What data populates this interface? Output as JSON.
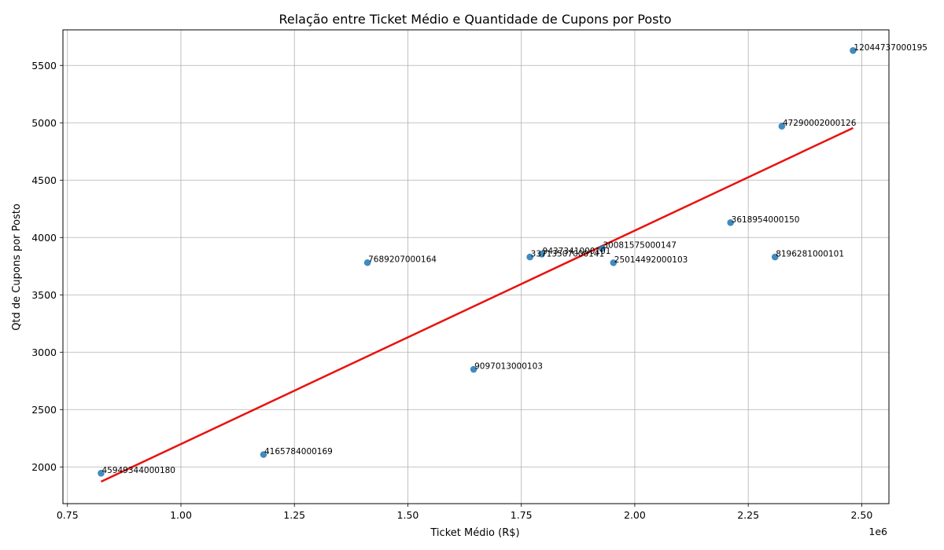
{
  "chart_data": {
    "type": "scatter",
    "title": "Relação entre Ticket Médio e Quantidade de Cupons por Posto",
    "xlabel": "Ticket Médio (R$)",
    "ylabel": "Qtd de Cupons por Posto",
    "x_offset_label": "1e6",
    "xlim": [
      0.74,
      2.56
    ],
    "ylim": [
      1680,
      5810
    ],
    "x_ticks": [
      0.75,
      1.0,
      1.25,
      1.5,
      1.75,
      2.0,
      2.25,
      2.5
    ],
    "x_tick_labels": [
      "0.75",
      "1.00",
      "1.25",
      "1.50",
      "1.75",
      "2.00",
      "2.25",
      "2.50"
    ],
    "y_ticks": [
      2000,
      2500,
      3000,
      3500,
      4000,
      4500,
      5000,
      5500
    ],
    "y_tick_labels": [
      "2000",
      "2500",
      "3000",
      "3500",
      "4000",
      "4500",
      "5000",
      "5500"
    ],
    "grid": true,
    "point_color": "#1f77b4",
    "line_color": "#e8120f",
    "points": [
      {
        "x": 0.824,
        "y": 1945,
        "label": "45949344000180"
      },
      {
        "x": 1.182,
        "y": 2108,
        "label": "4165784000169"
      },
      {
        "x": 1.411,
        "y": 3781,
        "label": "7689207000164"
      },
      {
        "x": 1.645,
        "y": 2851,
        "label": "9097013000103"
      },
      {
        "x": 1.769,
        "y": 3830,
        "label": "33713507000141"
      },
      {
        "x": 1.795,
        "y": 3855,
        "label": "9437341000101"
      },
      {
        "x": 1.928,
        "y": 3905,
        "label": "30081575000147"
      },
      {
        "x": 1.953,
        "y": 3780,
        "label": "25014492000103"
      },
      {
        "x": 2.211,
        "y": 4130,
        "label": "3618954000150"
      },
      {
        "x": 2.309,
        "y": 3830,
        "label": "8196281000101"
      },
      {
        "x": 2.324,
        "y": 4970,
        "label": "47290002000126"
      },
      {
        "x": 2.481,
        "y": 5630,
        "label": "12044737000195"
      }
    ],
    "trend_line": {
      "x": [
        0.824,
        2.481
      ],
      "y": [
        1872,
        4955
      ]
    }
  }
}
